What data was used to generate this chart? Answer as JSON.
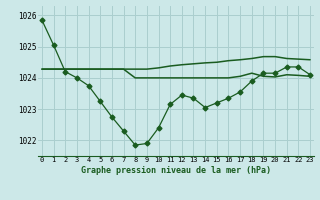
{
  "title": "Graphe pression niveau de la mer (hPa)",
  "bg_color": "#cce8e8",
  "grid_color": "#aacece",
  "line_color": "#1a5c20",
  "ylim": [
    1021.5,
    1026.3
  ],
  "xlim": [
    -0.3,
    23.3
  ],
  "x_labels": [
    "0",
    "1",
    "2",
    "3",
    "4",
    "5",
    "6",
    "7",
    "8",
    "9",
    "10",
    "11",
    "12",
    "13",
    "14",
    "15",
    "16",
    "17",
    "18",
    "19",
    "20",
    "21",
    "22",
    "23"
  ],
  "y_ticks": [
    1022,
    1023,
    1024,
    1025,
    1026
  ],
  "main_data": [
    1025.85,
    1025.05,
    1024.2,
    1024.0,
    1023.75,
    1023.25,
    1022.75,
    1022.3,
    1021.85,
    1021.9,
    1022.4,
    1023.15,
    1023.45,
    1023.35,
    1023.05,
    1023.2,
    1023.35,
    1023.55,
    1023.9,
    1024.15,
    1024.15,
    1024.35,
    1024.35,
    1024.1
  ],
  "smooth1_data": [
    1024.28,
    1024.28,
    1024.28,
    1024.28,
    1024.28,
    1024.28,
    1024.28,
    1024.28,
    1024.28,
    1024.28,
    1024.32,
    1024.38,
    1024.42,
    1024.45,
    1024.48,
    1024.5,
    1024.55,
    1024.58,
    1024.62,
    1024.68,
    1024.68,
    1024.62,
    1024.6,
    1024.58
  ],
  "smooth2_data": [
    1024.28,
    1024.28,
    1024.28,
    1024.28,
    1024.28,
    1024.28,
    1024.28,
    1024.28,
    1024.0,
    1024.0,
    1024.0,
    1024.0,
    1024.0,
    1024.0,
    1024.0,
    1024.0,
    1024.0,
    1024.05,
    1024.15,
    1024.05,
    1024.03,
    1024.1,
    1024.08,
    1024.05
  ]
}
